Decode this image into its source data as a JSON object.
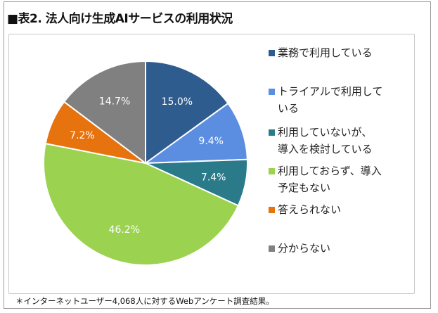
{
  "title": "■表2. 法人向け生成AIサービスの利用状況",
  "footnote": "＊インターネットユーザー4,068人に対するWebアンケート調査結果。",
  "chart_data": {
    "type": "pie",
    "start": "12 o'clock, clockwise",
    "legend_position": "right",
    "slices": [
      {
        "label": "業務で利用している",
        "legend_lines": [
          "業務で利用している"
        ],
        "value": 15.0,
        "data_label": "15.0%",
        "color": "#2f5c8f"
      },
      {
        "label": "トライアルで利用している",
        "legend_lines": [
          "トライアルで利用して",
          "いる"
        ],
        "value": 9.4,
        "data_label": "9.4%",
        "color": "#5b8ee0"
      },
      {
        "label": "利用していないが、導入を検討している",
        "legend_lines": [
          "利用していないが、",
          "導入を検討している"
        ],
        "value": 7.4,
        "data_label": "7.4%",
        "color": "#2b7a8a"
      },
      {
        "label": "利用しておらず、導入予定もない",
        "legend_lines": [
          "利用しておらず、導入",
          "予定もない"
        ],
        "value": 46.2,
        "data_label": "46.2%",
        "color": "#9bd24f"
      },
      {
        "label": "答えられない",
        "legend_lines": [
          "答えられない"
        ],
        "value": 7.2,
        "data_label": "7.2%",
        "color": "#e7730f"
      },
      {
        "label": "分からない",
        "legend_lines": [
          "分からない"
        ],
        "value": 14.7,
        "data_label": "14.7%",
        "color": "#808080"
      }
    ]
  }
}
